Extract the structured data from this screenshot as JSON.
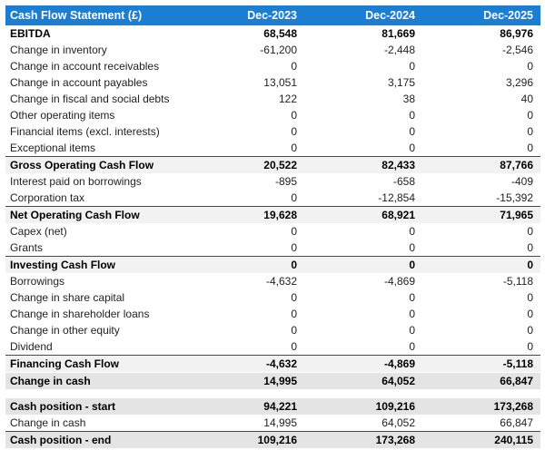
{
  "colors": {
    "header_bg": "#1b7ed2",
    "header_text": "#ffffff",
    "subtotal_bg": "#f2f2f2",
    "highlight_bg": "#e4e4e4",
    "border_dark": "#4a4a4a",
    "text_normal": "#222222",
    "text_bold": "#000000",
    "page_bg": "#ffffff"
  },
  "chart_data": {
    "type": "table",
    "title": "Cash Flow Statement (£)",
    "currency": "£",
    "columns": [
      "Cash Flow Statement (£)",
      "Dec-2023",
      "Dec-2024",
      "Dec-2025"
    ],
    "rows": [
      {
        "label": "EBITDA",
        "values": [
          "68,548",
          "81,669",
          "86,976"
        ],
        "type": "bold"
      },
      {
        "label": "Change in inventory",
        "values": [
          "-61,200",
          "-2,448",
          "-2,546"
        ],
        "type": "normal"
      },
      {
        "label": "Change in account receivables",
        "values": [
          "0",
          "0",
          "0"
        ],
        "type": "normal"
      },
      {
        "label": "Change in account payables",
        "values": [
          "13,051",
          "3,175",
          "3,296"
        ],
        "type": "normal"
      },
      {
        "label": "Change in fiscal and social debts",
        "values": [
          "122",
          "38",
          "40"
        ],
        "type": "normal"
      },
      {
        "label": "Other operating items",
        "values": [
          "0",
          "0",
          "0"
        ],
        "type": "normal"
      },
      {
        "label": "Financial items (excl. interests)",
        "values": [
          "0",
          "0",
          "0"
        ],
        "type": "normal"
      },
      {
        "label": "Exceptional items",
        "values": [
          "0",
          "0",
          "0"
        ],
        "type": "normal"
      },
      {
        "label": "Gross Operating Cash Flow",
        "values": [
          "20,522",
          "82,433",
          "87,766"
        ],
        "type": "subtotal"
      },
      {
        "label": "Interest paid on borrowings",
        "values": [
          "-895",
          "-658",
          "-409"
        ],
        "type": "normal"
      },
      {
        "label": "Corporation tax",
        "values": [
          "0",
          "-12,854",
          "-15,392"
        ],
        "type": "normal"
      },
      {
        "label": "Net Operating Cash Flow",
        "values": [
          "19,628",
          "68,921",
          "71,965"
        ],
        "type": "subtotal"
      },
      {
        "label": "Capex (net)",
        "values": [
          "0",
          "0",
          "0"
        ],
        "type": "normal"
      },
      {
        "label": "Grants",
        "values": [
          "0",
          "0",
          "0"
        ],
        "type": "normal"
      },
      {
        "label": "Investing Cash Flow",
        "values": [
          "0",
          "0",
          "0"
        ],
        "type": "subtotal"
      },
      {
        "label": "Borrowings",
        "values": [
          "-4,632",
          "-4,869",
          "-5,118"
        ],
        "type": "normal"
      },
      {
        "label": "Change in share capital",
        "values": [
          "0",
          "0",
          "0"
        ],
        "type": "normal"
      },
      {
        "label": "Change in shareholder loans",
        "values": [
          "0",
          "0",
          "0"
        ],
        "type": "normal"
      },
      {
        "label": "Change in other equity",
        "values": [
          "0",
          "0",
          "0"
        ],
        "type": "normal"
      },
      {
        "label": "Dividend",
        "values": [
          "0",
          "0",
          "0"
        ],
        "type": "normal"
      },
      {
        "label": "Financing Cash Flow",
        "values": [
          "-4,632",
          "-4,869",
          "-5,118"
        ],
        "type": "subtotal"
      },
      {
        "label": "Change in cash",
        "values": [
          "14,995",
          "64,052",
          "66,847"
        ],
        "type": "highlight"
      },
      {
        "type": "spacer"
      },
      {
        "label": "Cash position - start",
        "values": [
          "94,221",
          "109,216",
          "173,268"
        ],
        "type": "highlight"
      },
      {
        "label": "Change in cash",
        "values": [
          "14,995",
          "64,052",
          "66,847"
        ],
        "type": "normal"
      },
      {
        "label": "Cash position - end",
        "values": [
          "109,216",
          "173,268",
          "240,115"
        ],
        "type": "highlight-border"
      }
    ]
  }
}
